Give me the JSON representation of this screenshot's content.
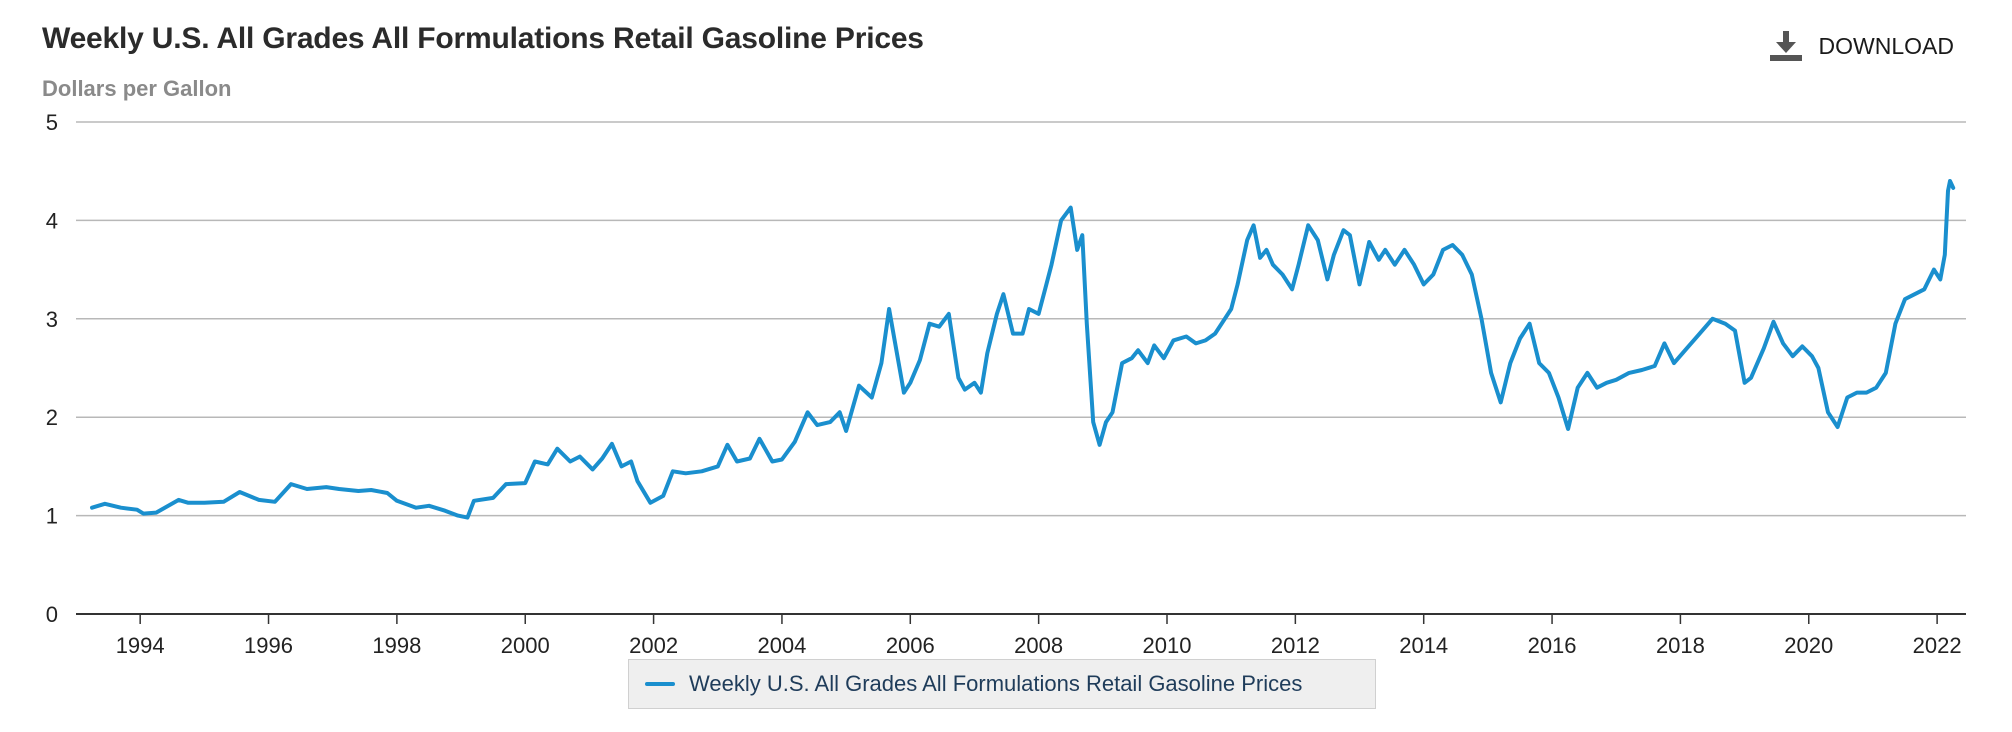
{
  "header": {
    "title": "Weekly U.S. All Grades All Formulations Retail Gasoline Prices",
    "subtitle": "Dollars per Gallon",
    "download_label": "DOWNLOAD"
  },
  "colors": {
    "series": "#1a8fce",
    "grid": "#b8b8b8",
    "axis": "#333333"
  },
  "chart_data": {
    "type": "line",
    "title": "Weekly U.S. All Grades All Formulations Retail Gasoline Prices",
    "subtitle": "Dollars per Gallon",
    "xlabel": "",
    "ylabel": "Dollars per Gallon",
    "xlim": [
      1993,
      2022.45
    ],
    "ylim": [
      0,
      5
    ],
    "yticks": [
      0,
      1,
      2,
      3,
      4,
      5
    ],
    "xticks": [
      1994,
      1996,
      1998,
      2000,
      2002,
      2004,
      2006,
      2008,
      2010,
      2012,
      2014,
      2016,
      2018,
      2020,
      2022
    ],
    "grid": true,
    "legend": "bottom-center",
    "series": [
      {
        "name": "Weekly U.S. All Grades All Formulations Retail Gasoline Prices",
        "x": [
          1993.25,
          1993.45,
          1993.7,
          1993.95,
          1994.05,
          1994.25,
          1994.6,
          1994.75,
          1995.0,
          1995.3,
          1995.55,
          1995.85,
          1996.1,
          1996.35,
          1996.6,
          1996.9,
          1997.1,
          1997.4,
          1997.6,
          1997.85,
          1998.0,
          1998.3,
          1998.5,
          1998.75,
          1998.95,
          1999.1,
          1999.2,
          1999.5,
          1999.7,
          2000.0,
          2000.15,
          2000.35,
          2000.5,
          2000.7,
          2000.85,
          2001.05,
          2001.2,
          2001.35,
          2001.5,
          2001.65,
          2001.75,
          2001.95,
          2002.15,
          2002.3,
          2002.5,
          2002.75,
          2003.0,
          2003.15,
          2003.3,
          2003.5,
          2003.65,
          2003.85,
          2004.0,
          2004.2,
          2004.4,
          2004.55,
          2004.75,
          2004.9,
          2005.0,
          2005.2,
          2005.4,
          2005.55,
          2005.67,
          2005.75,
          2005.9,
          2006.0,
          2006.15,
          2006.3,
          2006.45,
          2006.6,
          2006.75,
          2006.85,
          2007.0,
          2007.1,
          2007.2,
          2007.35,
          2007.45,
          2007.6,
          2007.75,
          2007.85,
          2008.0,
          2008.1,
          2008.2,
          2008.35,
          2008.5,
          2008.6,
          2008.68,
          2008.75,
          2008.85,
          2008.95,
          2009.05,
          2009.15,
          2009.3,
          2009.45,
          2009.55,
          2009.7,
          2009.8,
          2009.95,
          2010.1,
          2010.3,
          2010.45,
          2010.6,
          2010.75,
          2010.9,
          2011.0,
          2011.1,
          2011.25,
          2011.35,
          2011.45,
          2011.55,
          2011.65,
          2011.8,
          2011.95,
          2012.05,
          2012.2,
          2012.35,
          2012.5,
          2012.6,
          2012.75,
          2012.85,
          2013.0,
          2013.15,
          2013.3,
          2013.4,
          2013.55,
          2013.7,
          2013.85,
          2014.0,
          2014.15,
          2014.3,
          2014.45,
          2014.6,
          2014.75,
          2014.9,
          2015.05,
          2015.2,
          2015.35,
          2015.5,
          2015.65,
          2015.8,
          2015.95,
          2016.1,
          2016.25,
          2016.4,
          2016.55,
          2016.7,
          2016.85,
          2017.0,
          2017.2,
          2017.4,
          2017.6,
          2017.75,
          2017.9,
          2018.1,
          2018.3,
          2018.5,
          2018.7,
          2018.85,
          2019.0,
          2019.1,
          2019.3,
          2019.45,
          2019.6,
          2019.75,
          2019.9,
          2020.05,
          2020.15,
          2020.3,
          2020.45,
          2020.6,
          2020.75,
          2020.9,
          2021.05,
          2021.2,
          2021.35,
          2021.5,
          2021.65,
          2021.8,
          2021.95,
          2022.05,
          2022.12,
          2022.17,
          2022.2,
          2022.25
        ],
        "y": [
          1.08,
          1.12,
          1.08,
          1.06,
          1.02,
          1.03,
          1.16,
          1.13,
          1.13,
          1.14,
          1.24,
          1.16,
          1.14,
          1.32,
          1.27,
          1.29,
          1.27,
          1.25,
          1.26,
          1.23,
          1.15,
          1.08,
          1.1,
          1.05,
          1.0,
          0.98,
          1.15,
          1.18,
          1.32,
          1.33,
          1.55,
          1.52,
          1.68,
          1.55,
          1.6,
          1.47,
          1.58,
          1.73,
          1.5,
          1.55,
          1.35,
          1.13,
          1.2,
          1.45,
          1.43,
          1.45,
          1.5,
          1.72,
          1.55,
          1.58,
          1.78,
          1.55,
          1.57,
          1.75,
          2.05,
          1.92,
          1.95,
          2.05,
          1.86,
          2.32,
          2.2,
          2.55,
          3.1,
          2.8,
          2.25,
          2.35,
          2.58,
          2.95,
          2.92,
          3.05,
          2.4,
          2.28,
          2.35,
          2.25,
          2.65,
          3.05,
          3.25,
          2.85,
          2.85,
          3.1,
          3.05,
          3.3,
          3.55,
          4.0,
          4.13,
          3.7,
          3.85,
          2.95,
          1.95,
          1.72,
          1.95,
          2.05,
          2.55,
          2.6,
          2.68,
          2.55,
          2.73,
          2.6,
          2.78,
          2.82,
          2.75,
          2.78,
          2.85,
          3.0,
          3.1,
          3.35,
          3.8,
          3.95,
          3.62,
          3.7,
          3.55,
          3.45,
          3.3,
          3.55,
          3.95,
          3.8,
          3.4,
          3.65,
          3.9,
          3.85,
          3.35,
          3.78,
          3.6,
          3.7,
          3.55,
          3.7,
          3.55,
          3.35,
          3.45,
          3.7,
          3.75,
          3.65,
          3.45,
          3.0,
          2.45,
          2.15,
          2.55,
          2.8,
          2.95,
          2.55,
          2.45,
          2.2,
          1.88,
          2.3,
          2.45,
          2.3,
          2.35,
          2.38,
          2.45,
          2.48,
          2.52,
          2.75,
          2.55,
          2.7,
          2.85,
          3.0,
          2.95,
          2.88,
          2.35,
          2.4,
          2.7,
          2.97,
          2.75,
          2.62,
          2.72,
          2.62,
          2.5,
          2.05,
          1.9,
          2.2,
          2.25,
          2.25,
          2.3,
          2.45,
          2.95,
          3.2,
          3.25,
          3.3,
          3.5,
          3.4,
          3.65,
          4.3,
          4.4,
          4.33
        ]
      }
    ]
  }
}
